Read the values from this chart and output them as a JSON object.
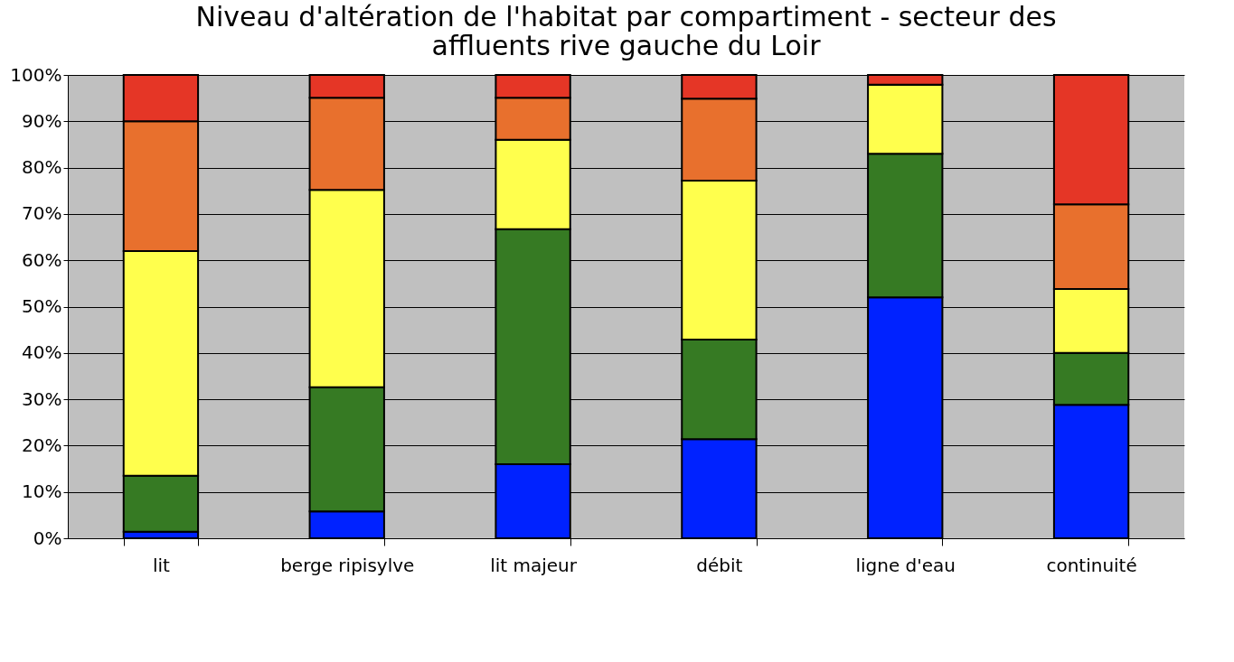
{
  "chart_data": {
    "type": "bar",
    "stacked": true,
    "title": "Niveau d'altération de l'habitat par compartiment - secteur des affluents rive gauche du Loir",
    "categories": [
      "lit",
      "berge ripisylve",
      "lit majeur",
      "débit",
      "ligne d'eau",
      "continuité"
    ],
    "series": [
      {
        "color": "#0022ff",
        "values": [
          1.4,
          5.8,
          16,
          21.4,
          52,
          28.8
        ]
      },
      {
        "color": "#367a23",
        "values": [
          12.1,
          26.8,
          50.7,
          21.5,
          31,
          11.2
        ]
      },
      {
        "color": "#ffff4d",
        "values": [
          48.5,
          42.6,
          19.3,
          34.3,
          14.9,
          13.8
        ]
      },
      {
        "color": "#e8702d",
        "values": [
          28,
          19.9,
          9.1,
          17.7,
          0,
          18.3
        ]
      },
      {
        "color": "#e53626",
        "values": [
          10,
          4.9,
          4.9,
          5.1,
          2.1,
          27.9
        ]
      }
    ],
    "ylim": [
      0,
      100
    ],
    "yticks": [
      {
        "value": 0,
        "label": "0%"
      },
      {
        "value": 10,
        "label": "10%"
      },
      {
        "value": 20,
        "label": "20%"
      },
      {
        "value": 30,
        "label": "30%"
      },
      {
        "value": 40,
        "label": "40%"
      },
      {
        "value": 50,
        "label": "50%"
      },
      {
        "value": 60,
        "label": "60%"
      },
      {
        "value": 70,
        "label": "70%"
      },
      {
        "value": 80,
        "label": "80%"
      },
      {
        "value": 90,
        "label": "90%"
      },
      {
        "value": 100,
        "label": "100%"
      }
    ],
    "grid": "y"
  }
}
